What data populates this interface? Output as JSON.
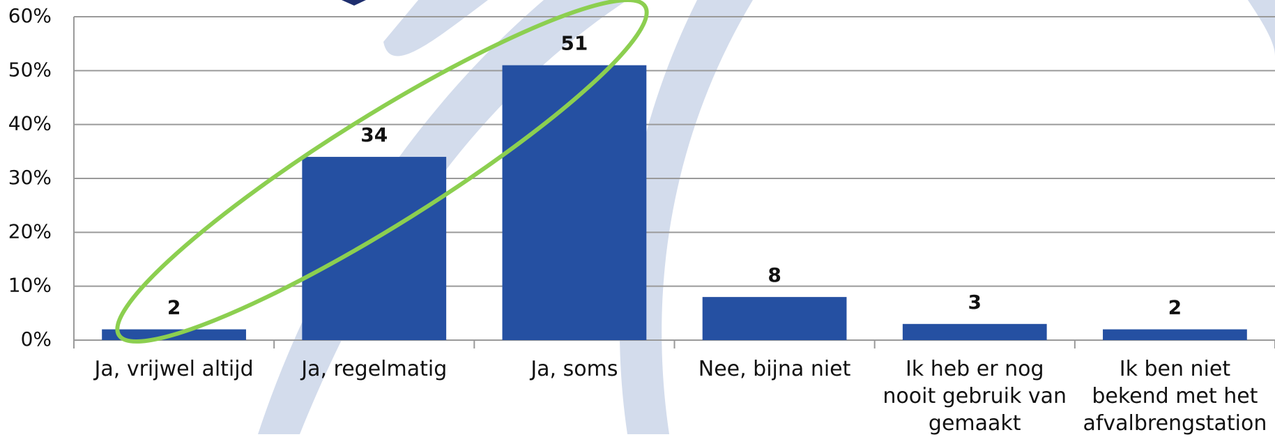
{
  "chart_data": {
    "type": "bar",
    "categories": [
      "Ja, vrijwel altijd",
      "Ja, regelmatig",
      "Ja, soms",
      "Nee, bijna niet",
      "Ik heb er nog nooit gebruik van gemaakt",
      "Ik ben niet bekend met het afvalbrengstation"
    ],
    "values": [
      2,
      34,
      51,
      8,
      3,
      2
    ],
    "color": "#2550a2",
    "ylim": [
      0,
      60
    ],
    "yticks": [
      {
        "value": 0,
        "label": "0%"
      },
      {
        "value": 10,
        "label": "10%"
      },
      {
        "value": 20,
        "label": "20%"
      },
      {
        "value": 30,
        "label": "30%"
      },
      {
        "value": 40,
        "label": "40%"
      },
      {
        "value": 50,
        "label": "50%"
      },
      {
        "value": 60,
        "label": "60%"
      }
    ],
    "grid": true
  }
}
